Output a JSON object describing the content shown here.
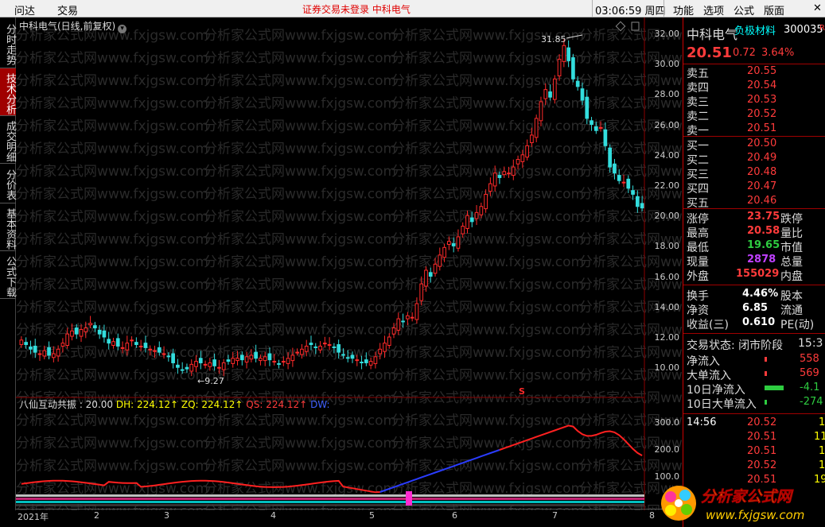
{
  "menubar": {
    "left_items": [
      "问达",
      "交易"
    ],
    "notice": "证券交易未登录  中科电气",
    "clock": "03:06:59 周四",
    "right_items": [
      "功能",
      "选项",
      "公式",
      "版面"
    ],
    "close": "✕"
  },
  "sidetabs": [
    "分时走势",
    "技术分析",
    "成交明细",
    "分价表",
    "基本资料",
    "公式下载"
  ],
  "chart": {
    "title": "中科电气(日线,前复权)",
    "price_ticks": [
      "32.00",
      "30.00",
      "28.00",
      "26.00",
      "24.00",
      "22.00",
      "20.00",
      "18.00",
      "16.00",
      "14.00",
      "12.00",
      "10.00"
    ],
    "high_marker": "31.85",
    "low_marker": "9.27",
    "signal_marker": "S",
    "indicator_title": {
      "name": "八仙互动共振 : 20.00",
      "dh": "DH: 224.12↑",
      "zq": "ZQ: 224.12↑",
      "qs": "QS: 224.12↑",
      "dw": "DW:"
    },
    "indicator_ticks": [
      "300.0",
      "200.0",
      "100.0"
    ],
    "x_labels": [
      "2021年",
      "2",
      "3",
      "4",
      "5",
      "6",
      "7",
      "8"
    ],
    "watermark": "分析家公式网www.fxjgsw.com"
  },
  "panel": {
    "name": "中科电气",
    "concept": "负极材料",
    "code": "300035",
    "flag": "R",
    "price": "20.51",
    "change": "0.72",
    "change_pct": "3.64%",
    "asks": [
      {
        "label": "卖五",
        "price": "20.55"
      },
      {
        "label": "卖四",
        "price": "20.54"
      },
      {
        "label": "卖三",
        "price": "20.53"
      },
      {
        "label": "卖二",
        "price": "20.52"
      },
      {
        "label": "卖一",
        "price": "20.51"
      }
    ],
    "bids": [
      {
        "label": "买一",
        "price": "20.50"
      },
      {
        "label": "买二",
        "price": "20.49"
      },
      {
        "label": "买三",
        "price": "20.48"
      },
      {
        "label": "买四",
        "price": "20.47"
      },
      {
        "label": "买五",
        "price": "20.46"
      }
    ],
    "stats": [
      {
        "label": "涨停",
        "value": "23.75",
        "label2": "跌停"
      },
      {
        "label": "最高",
        "value": "20.58",
        "label2": "量比"
      },
      {
        "label": "最低",
        "value": "19.65",
        "label2": "市值"
      },
      {
        "label": "现量",
        "value": "2878",
        "label2": "总量"
      },
      {
        "label": "外盘",
        "value": "155029",
        "label2": "内盘"
      }
    ],
    "fin": [
      {
        "label": "换手",
        "value": "4.46%",
        "label2": "股本"
      },
      {
        "label": "净资",
        "value": "6.85",
        "label2": "流通"
      },
      {
        "label": "收益(三)",
        "value": "0.610",
        "label2": "PE(动)"
      }
    ],
    "status_label": "交易状态: 闭市阶段",
    "status_time": "15:3",
    "flows": [
      {
        "label": "净流入",
        "value": "558"
      },
      {
        "label": "大单流入",
        "value": "569"
      },
      {
        "label": "10日净流入",
        "value": "-4.1"
      },
      {
        "label": "10日大单流入",
        "value": "-274"
      }
    ],
    "ticks": [
      {
        "time": "14:56",
        "price": "20.52",
        "vol": "1"
      },
      {
        "time": "",
        "price": "20.51",
        "vol": "11"
      },
      {
        "time": "",
        "price": "20.51",
        "vol": "1"
      },
      {
        "time": "",
        "price": "20.52",
        "vol": "1"
      },
      {
        "time": "",
        "price": "20.51",
        "vol": "19"
      }
    ]
  },
  "logo": {
    "text": "分析家公式网",
    "url": "www.fxjgsw.com"
  }
}
